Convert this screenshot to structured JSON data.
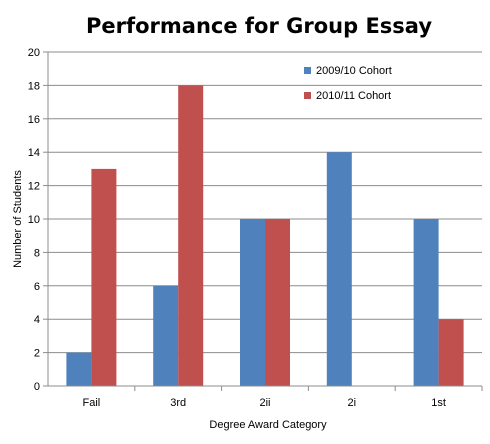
{
  "chart_data": {
    "type": "bar",
    "title": "Performance for Group Essay",
    "xlabel": "Degree Award Category",
    "ylabel": "Number of Students",
    "categories": [
      "Fail",
      "3rd",
      "2ii",
      "2i",
      "1st"
    ],
    "series": [
      {
        "name": "2009/10 Cohort",
        "color": "#4f81bd",
        "values": [
          2,
          6,
          10,
          14,
          10
        ]
      },
      {
        "name": "2010/11 Cohort",
        "color": "#c0504d",
        "values": [
          13,
          18,
          10,
          0,
          4
        ]
      }
    ],
    "ylim": [
      0,
      20
    ],
    "yticks": [
      "0",
      "2",
      "4",
      "6",
      "8",
      "10",
      "12",
      "14",
      "16",
      "18",
      "20"
    ],
    "grid": true,
    "legend_position": "top-right"
  }
}
